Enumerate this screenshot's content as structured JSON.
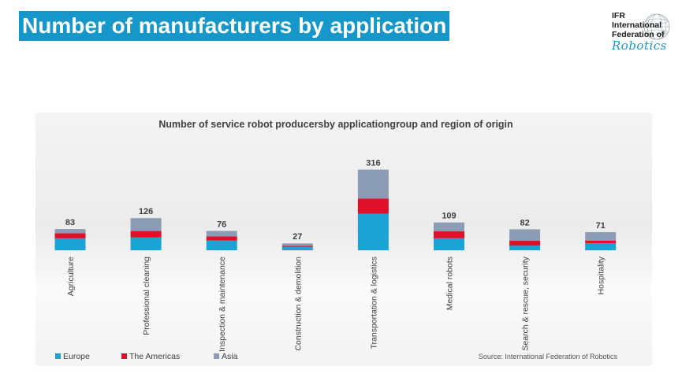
{
  "header": {
    "title": "Number of manufacturers by application"
  },
  "logo": {
    "line1": "IFR",
    "line2": "International",
    "line3": "Federation of",
    "line4": "Robotics"
  },
  "colors": {
    "europe": "#1ba3d6",
    "americas": "#e0102a",
    "asia": "#8b9db5",
    "title_bg": "#1597c9"
  },
  "chart_data": {
    "type": "bar",
    "stacked": true,
    "title": "Number of service robot producersby applicationgroup and region of origin",
    "categories": [
      "Agriculture",
      "Professional cleaning",
      "Inspection & maintenance",
      "Construction & demolition",
      "Transportation & logistics",
      "Medical robots",
      "Search & rescue, security",
      "Hospitality"
    ],
    "totals": [
      83,
      126,
      76,
      27,
      316,
      109,
      82,
      71
    ],
    "series": [
      {
        "name": "Europe",
        "values": [
          47,
          50,
          38,
          13,
          143,
          47,
          18,
          28
        ]
      },
      {
        "name": "The Americas",
        "values": [
          20,
          26,
          16,
          4,
          60,
          28,
          20,
          10
        ]
      },
      {
        "name": "Asia",
        "values": [
          16,
          50,
          22,
          10,
          113,
          34,
          44,
          33
        ]
      }
    ],
    "ylim": [
      0,
      330
    ],
    "grid": false,
    "legend": "bottom-left",
    "source": "Source: International Federation of Robotics"
  }
}
